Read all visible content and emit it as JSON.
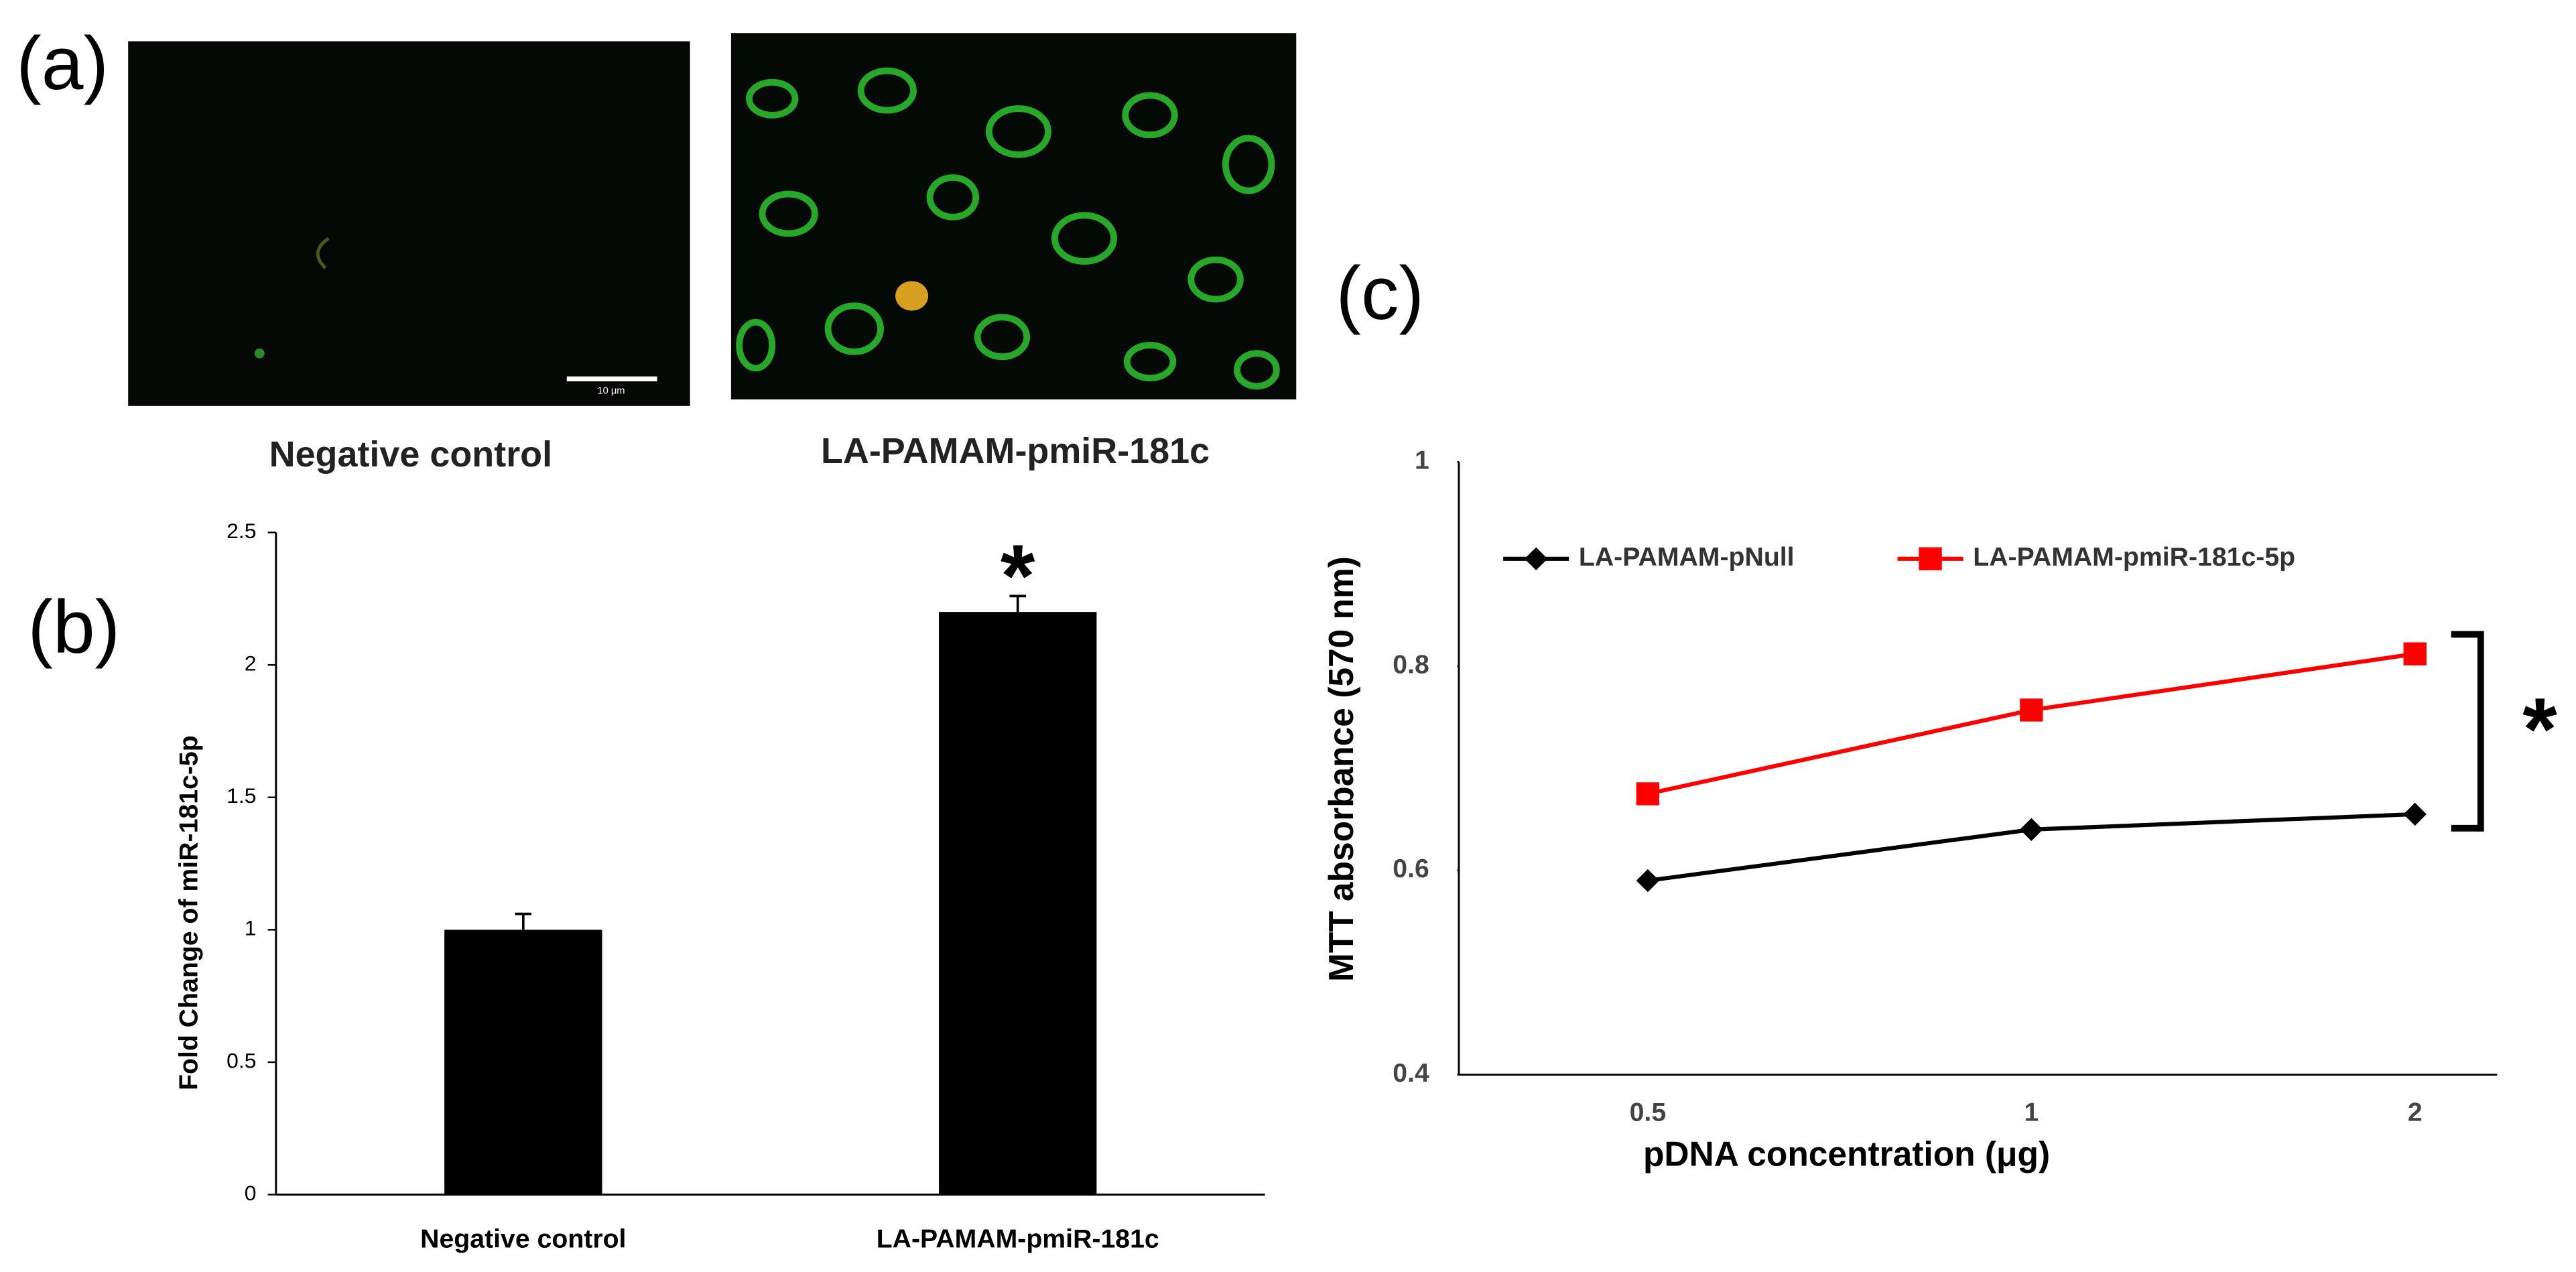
{
  "panel_labels": [
    "(a)",
    "(b)",
    "(c)"
  ],
  "images": [
    {
      "caption": "Negative control",
      "scale_bar": "10 μm"
    },
    {
      "caption": "LA-PAMAM-pmiR-181c"
    }
  ],
  "chart_data": [
    {
      "type": "bar",
      "ylabel": "Fold Change of miR-181c-5p",
      "categories": [
        "Negative control",
        "LA-PAMAM-pmiR-181c"
      ],
      "values": [
        1.0,
        2.2
      ],
      "errors": [
        0.06,
        0.06
      ],
      "color": "#000000",
      "ylim": [
        0,
        2.5
      ],
      "yticks": [
        0,
        0.5,
        1,
        1.5,
        2,
        2.5
      ],
      "annotation": "*"
    },
    {
      "type": "line",
      "xlabel": "pDNA concentration (μg)",
      "ylabel": "MTT absorbance (570 nm)",
      "categories": [
        "0.5",
        "1",
        "2"
      ],
      "series": [
        {
          "name": "LA-PAMAM-pNull",
          "color": "#000000",
          "marker": "diamond",
          "values": [
            0.59,
            0.64,
            0.655
          ]
        },
        {
          "name": "LA-PAMAM-pmiR-181c-5p",
          "color": "#ff0000",
          "marker": "square",
          "values": [
            0.675,
            0.757,
            0.812
          ]
        }
      ],
      "ylim": [
        0.4,
        1
      ],
      "yticks": [
        0.4,
        0.6,
        0.8,
        1
      ],
      "annotation": "*"
    }
  ]
}
